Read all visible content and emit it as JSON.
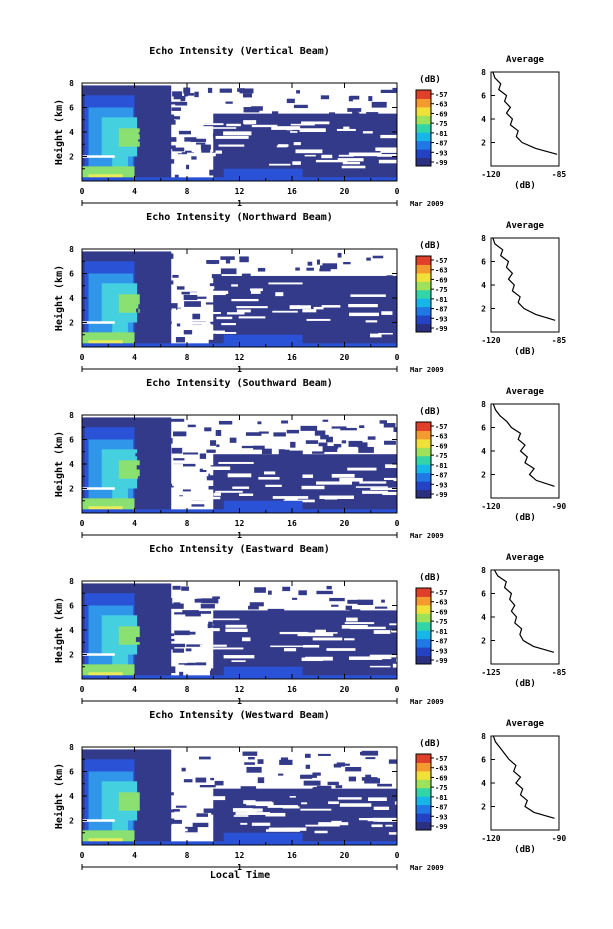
{
  "figure": {
    "xlabel": "Local Time",
    "date_label": "Mar 2009",
    "xticks": [
      "0",
      "4",
      "8",
      "12",
      "16",
      "20",
      "0"
    ],
    "day_label": "1",
    "yticks": [
      "2",
      "4",
      "6",
      "8"
    ],
    "ylabel": "Height (km)",
    "colorbar_unit": "(dB)",
    "colorbar_ticks": [
      "-57",
      "-63",
      "-69",
      "-75",
      "-81",
      "-87",
      "-93",
      "-99"
    ],
    "colorbar_colors": [
      "#2b2f80",
      "#2443c4",
      "#1f78e6",
      "#16b6e8",
      "#32d4a8",
      "#9ee25c",
      "#f0e13a",
      "#f59a2e",
      "#e0402a"
    ],
    "plume_colors": {
      "deep": "#343a8a",
      "blue": "#2a52d6",
      "sky": "#2f96ea",
      "cyan": "#45d0df",
      "green": "#8ae070",
      "yellow": "#e8ec5a"
    },
    "avg_title": "Average",
    "avg_xlabel": "(dB)",
    "avg_yticks": [
      "2",
      "4",
      "6",
      "8"
    ]
  },
  "chart_data": [
    {
      "type": "heatmap",
      "title": "Echo Intensity (Vertical Beam)",
      "avg_xticks": [
        "-120",
        "-85"
      ],
      "avg_profile": {
        "x_range": [
          -120,
          -85
        ],
        "height_km": [
          1.0,
          1.5,
          2.0,
          2.5,
          3.0,
          3.5,
          4.0,
          4.5,
          5.0,
          5.5,
          6.0,
          6.5,
          7.0,
          7.5,
          8.0
        ],
        "db": [
          -86,
          -97,
          -104,
          -107,
          -106,
          -110,
          -109,
          -112,
          -110,
          -113,
          -112,
          -116,
          -115,
          -118,
          -119
        ]
      }
    },
    {
      "type": "heatmap",
      "title": "Echo Intensity (Northward Beam)",
      "avg_xticks": [
        "-120",
        "-85"
      ],
      "avg_profile": {
        "x_range": [
          -120,
          -85
        ],
        "height_km": [
          1.0,
          1.5,
          2.0,
          2.5,
          3.0,
          3.5,
          4.0,
          4.5,
          5.0,
          5.5,
          6.0,
          6.5,
          7.0,
          7.5,
          8.0
        ],
        "db": [
          -87,
          -97,
          -103,
          -106,
          -105,
          -109,
          -108,
          -111,
          -109,
          -112,
          -111,
          -115,
          -114,
          -118,
          -119
        ]
      }
    },
    {
      "type": "heatmap",
      "title": "Echo Intensity (Southward Beam)",
      "avg_xticks": [
        "-120",
        "-90"
      ],
      "avg_profile": {
        "x_range": [
          -120,
          -90
        ],
        "height_km": [
          1.0,
          1.5,
          2.0,
          2.5,
          3.0,
          3.5,
          4.0,
          4.5,
          5.0,
          5.5,
          6.0,
          6.5,
          7.0,
          7.5,
          8.0
        ],
        "db": [
          -92,
          -100,
          -103,
          -101,
          -105,
          -104,
          -107,
          -105,
          -108,
          -107,
          -111,
          -113,
          -116,
          -118,
          -119
        ]
      }
    },
    {
      "type": "heatmap",
      "title": "Echo Intensity (Eastward Beam)",
      "avg_xticks": [
        "-125",
        "-85"
      ],
      "avg_profile": {
        "x_range": [
          -125,
          -85
        ],
        "height_km": [
          1.0,
          1.5,
          2.0,
          2.5,
          3.0,
          3.5,
          4.0,
          4.5,
          5.0,
          5.5,
          6.0,
          6.5,
          7.0,
          7.5,
          8.0
        ],
        "db": [
          -88,
          -100,
          -106,
          -108,
          -107,
          -111,
          -110,
          -113,
          -111,
          -114,
          -113,
          -117,
          -116,
          -121,
          -123
        ]
      }
    },
    {
      "type": "heatmap",
      "title": "Echo Intensity (Westward Beam)",
      "avg_xticks": [
        "-120",
        "-90"
      ],
      "avg_profile": {
        "x_range": [
          -120,
          -90
        ],
        "height_km": [
          1.0,
          1.5,
          2.0,
          2.5,
          3.0,
          3.5,
          4.0,
          4.5,
          5.0,
          5.5,
          6.0,
          6.5,
          7.0,
          7.5,
          8.0
        ],
        "db": [
          -92,
          -101,
          -105,
          -104,
          -107,
          -106,
          -109,
          -107,
          -110,
          -109,
          -112,
          -114,
          -116,
          -118,
          -119
        ]
      }
    }
  ]
}
